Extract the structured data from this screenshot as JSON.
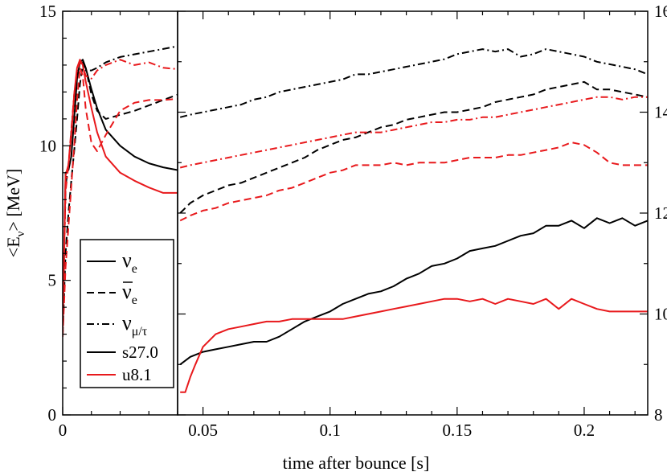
{
  "chart_data": {
    "type": "line",
    "xlabel": "time after bounce [s]",
    "ylabel_text": "<E",
    "ylabel_sub": "ν",
    "ylabel_end": "> [MeV]",
    "left_panel": {
      "xlim": [
        0,
        0.04
      ],
      "ylim": [
        0,
        15
      ],
      "x_ticks": [
        0
      ],
      "x_tick_labels": [
        "0"
      ],
      "y_ticks": [
        0,
        5,
        10,
        15
      ],
      "y_tick_labels": [
        "0",
        "5",
        "10",
        "15"
      ]
    },
    "right_panel": {
      "xlim": [
        0.04,
        0.225
      ],
      "ylim": [
        8,
        16
      ],
      "x_ticks": [
        0.05,
        0.1,
        0.15,
        0.2
      ],
      "x_tick_labels": [
        "0.05",
        "0.1",
        "0.15",
        "0.2"
      ],
      "y_ticks": [
        8,
        10,
        12,
        14,
        16
      ],
      "y_tick_labels": [
        "8",
        "10",
        "12",
        "14",
        "16"
      ]
    },
    "legend": {
      "styles": [
        {
          "key": "solid",
          "symbol": "ν",
          "sub": "e"
        },
        {
          "key": "dashed",
          "symbol": "ν",
          "sub": "e",
          "bar": true
        },
        {
          "key": "dashdot",
          "symbol": "ν",
          "sub": "μ/τ"
        }
      ],
      "models": [
        {
          "name": "s27.0",
          "color": "#000000"
        },
        {
          "name": "u8.1",
          "color": "#e8191c"
        }
      ]
    },
    "series": [
      {
        "name": "s27.0 nu_e early",
        "model": "s27.0",
        "flavor": "nu_e",
        "panel": "left",
        "color": "#000000",
        "dash": "solid",
        "x": [
          0,
          0.001,
          0.002,
          0.003,
          0.004,
          0.005,
          0.006,
          0.007,
          0.008,
          0.01,
          0.012,
          0.015,
          0.02,
          0.025,
          0.03,
          0.035,
          0.04
        ],
        "y": [
          3.2,
          9.0,
          9.1,
          9.6,
          11.0,
          12.5,
          13.1,
          13.2,
          12.9,
          12.1,
          11.4,
          10.6,
          10.0,
          9.6,
          9.35,
          9.2,
          9.1
        ]
      },
      {
        "name": "s27.0 anti-nu_e early",
        "model": "s27.0",
        "flavor": "anti_nu_e",
        "panel": "left",
        "color": "#000000",
        "dash": "dashed",
        "x": [
          0,
          0.001,
          0.002,
          0.003,
          0.004,
          0.005,
          0.006,
          0.007,
          0.008,
          0.01,
          0.012,
          0.015,
          0.02,
          0.025,
          0.03,
          0.035,
          0.04
        ],
        "y": [
          3.0,
          6.0,
          7.5,
          8.7,
          9.8,
          11.0,
          12.3,
          13.0,
          12.9,
          11.9,
          11.3,
          11.0,
          11.15,
          11.3,
          11.5,
          11.7,
          11.9
        ]
      },
      {
        "name": "s27.0 nu_mu/tau early",
        "model": "s27.0",
        "flavor": "nu_x",
        "panel": "left",
        "color": "#000000",
        "dash": "dashdot",
        "x": [
          0,
          0.001,
          0.002,
          0.003,
          0.004,
          0.005,
          0.006,
          0.007,
          0.008,
          0.01,
          0.012,
          0.015,
          0.02,
          0.025,
          0.03,
          0.035,
          0.04
        ],
        "y": [
          3.5,
          8.5,
          9.3,
          10.5,
          11.8,
          12.7,
          13.1,
          13.1,
          12.8,
          12.8,
          12.9,
          13.1,
          13.3,
          13.4,
          13.5,
          13.6,
          13.7
        ]
      },
      {
        "name": "u8.1 nu_e early",
        "model": "u8.1",
        "flavor": "nu_e",
        "panel": "left",
        "color": "#e8191c",
        "dash": "solid",
        "x": [
          0,
          0.001,
          0.002,
          0.003,
          0.004,
          0.005,
          0.006,
          0.007,
          0.008,
          0.01,
          0.012,
          0.015,
          0.02,
          0.025,
          0.03,
          0.035,
          0.04
        ],
        "y": [
          3.1,
          8.9,
          9.3,
          10.4,
          11.9,
          12.9,
          13.2,
          13.0,
          12.4,
          11.4,
          10.5,
          9.6,
          9.0,
          8.7,
          8.45,
          8.25,
          8.25
        ]
      },
      {
        "name": "u8.1 anti-nu_e early",
        "model": "u8.1",
        "flavor": "anti_nu_e",
        "panel": "left",
        "color": "#e8191c",
        "dash": "dashed",
        "x": [
          0,
          0.001,
          0.002,
          0.003,
          0.004,
          0.005,
          0.006,
          0.007,
          0.008,
          0.01,
          0.012,
          0.015,
          0.02,
          0.025,
          0.03,
          0.035,
          0.04
        ],
        "y": [
          2.9,
          5.5,
          7.0,
          8.5,
          10.0,
          11.7,
          12.9,
          12.6,
          11.4,
          10.1,
          9.8,
          10.4,
          11.3,
          11.6,
          11.7,
          11.7,
          11.75
        ]
      },
      {
        "name": "u8.1 nu_mu/tau early",
        "model": "u8.1",
        "flavor": "nu_x",
        "panel": "left",
        "color": "#e8191c",
        "dash": "dashdot",
        "x": [
          0,
          0.001,
          0.002,
          0.003,
          0.004,
          0.005,
          0.006,
          0.007,
          0.008,
          0.01,
          0.012,
          0.015,
          0.02,
          0.025,
          0.03,
          0.035,
          0.04
        ],
        "y": [
          3.3,
          8.3,
          9.3,
          10.6,
          11.9,
          12.8,
          13.1,
          13.0,
          12.6,
          12.5,
          12.8,
          13.0,
          13.2,
          13.0,
          13.1,
          12.9,
          12.85
        ]
      },
      {
        "name": "s27.0 nu_e",
        "model": "s27.0",
        "flavor": "nu_e",
        "panel": "right",
        "color": "#000000",
        "dash": "solid",
        "x": [
          0.041,
          0.045,
          0.05,
          0.055,
          0.06,
          0.065,
          0.07,
          0.075,
          0.08,
          0.085,
          0.09,
          0.095,
          0.1,
          0.105,
          0.11,
          0.115,
          0.12,
          0.125,
          0.13,
          0.135,
          0.14,
          0.145,
          0.15,
          0.155,
          0.16,
          0.165,
          0.17,
          0.175,
          0.18,
          0.185,
          0.19,
          0.195,
          0.2,
          0.205,
          0.21,
          0.215,
          0.22,
          0.225
        ],
        "y": [
          9.0,
          9.15,
          9.25,
          9.3,
          9.35,
          9.4,
          9.45,
          9.45,
          9.55,
          9.7,
          9.85,
          9.95,
          10.05,
          10.2,
          10.3,
          10.4,
          10.45,
          10.55,
          10.7,
          10.8,
          10.95,
          11.0,
          11.1,
          11.25,
          11.3,
          11.35,
          11.45,
          11.55,
          11.6,
          11.75,
          11.75,
          11.85,
          11.7,
          11.9,
          11.8,
          11.9,
          11.75,
          11.85
        ]
      },
      {
        "name": "s27.0 anti-nu_e",
        "model": "s27.0",
        "flavor": "anti_nu_e",
        "panel": "right",
        "color": "#000000",
        "dash": "dashed",
        "x": [
          0.041,
          0.045,
          0.05,
          0.055,
          0.06,
          0.065,
          0.07,
          0.075,
          0.08,
          0.085,
          0.09,
          0.095,
          0.1,
          0.105,
          0.11,
          0.115,
          0.12,
          0.125,
          0.13,
          0.135,
          0.14,
          0.145,
          0.15,
          0.155,
          0.16,
          0.165,
          0.17,
          0.175,
          0.18,
          0.185,
          0.19,
          0.195,
          0.2,
          0.205,
          0.21,
          0.215,
          0.22,
          0.225
        ],
        "y": [
          12.0,
          12.2,
          12.35,
          12.45,
          12.55,
          12.6,
          12.7,
          12.8,
          12.9,
          13.0,
          13.1,
          13.25,
          13.35,
          13.45,
          13.5,
          13.6,
          13.7,
          13.75,
          13.85,
          13.9,
          13.95,
          14.0,
          14.0,
          14.05,
          14.1,
          14.2,
          14.25,
          14.3,
          14.35,
          14.45,
          14.5,
          14.55,
          14.6,
          14.45,
          14.45,
          14.4,
          14.35,
          14.3
        ]
      },
      {
        "name": "s27.0 nu_mu/tau",
        "model": "s27.0",
        "flavor": "nu_x",
        "panel": "right",
        "color": "#000000",
        "dash": "dashdot",
        "x": [
          0.041,
          0.045,
          0.05,
          0.055,
          0.06,
          0.065,
          0.07,
          0.075,
          0.08,
          0.085,
          0.09,
          0.095,
          0.1,
          0.105,
          0.11,
          0.115,
          0.12,
          0.125,
          0.13,
          0.135,
          0.14,
          0.145,
          0.15,
          0.155,
          0.16,
          0.165,
          0.17,
          0.175,
          0.18,
          0.185,
          0.19,
          0.195,
          0.2,
          0.205,
          0.21,
          0.215,
          0.22,
          0.225
        ],
        "y": [
          13.9,
          13.95,
          14.0,
          14.05,
          14.1,
          14.15,
          14.25,
          14.3,
          14.4,
          14.45,
          14.5,
          14.55,
          14.6,
          14.65,
          14.75,
          14.75,
          14.8,
          14.85,
          14.9,
          14.95,
          15.0,
          15.05,
          15.15,
          15.2,
          15.25,
          15.2,
          15.25,
          15.1,
          15.15,
          15.25,
          15.2,
          15.15,
          15.1,
          15.0,
          14.95,
          14.9,
          14.85,
          14.75
        ]
      },
      {
        "name": "u8.1 nu_e",
        "model": "u8.1",
        "flavor": "nu_e",
        "panel": "right",
        "color": "#e8191c",
        "dash": "solid",
        "x": [
          0.041,
          0.043,
          0.045,
          0.047,
          0.05,
          0.055,
          0.06,
          0.065,
          0.07,
          0.075,
          0.08,
          0.085,
          0.09,
          0.095,
          0.1,
          0.105,
          0.11,
          0.115,
          0.12,
          0.125,
          0.13,
          0.135,
          0.14,
          0.145,
          0.15,
          0.155,
          0.16,
          0.165,
          0.17,
          0.175,
          0.18,
          0.185,
          0.19,
          0.195,
          0.2,
          0.205,
          0.21,
          0.215,
          0.22,
          0.225
        ],
        "y": [
          8.45,
          8.45,
          8.75,
          9.0,
          9.35,
          9.6,
          9.7,
          9.75,
          9.8,
          9.85,
          9.85,
          9.9,
          9.9,
          9.9,
          9.9,
          9.9,
          9.95,
          10.0,
          10.05,
          10.1,
          10.15,
          10.2,
          10.25,
          10.3,
          10.3,
          10.25,
          10.3,
          10.2,
          10.3,
          10.25,
          10.2,
          10.3,
          10.1,
          10.3,
          10.2,
          10.1,
          10.05,
          10.05,
          10.05,
          10.05
        ]
      },
      {
        "name": "u8.1 anti-nu_e",
        "model": "u8.1",
        "flavor": "anti_nu_e",
        "panel": "right",
        "color": "#e8191c",
        "dash": "dashed",
        "x": [
          0.041,
          0.045,
          0.05,
          0.055,
          0.06,
          0.065,
          0.07,
          0.075,
          0.08,
          0.085,
          0.09,
          0.095,
          0.1,
          0.105,
          0.11,
          0.115,
          0.12,
          0.125,
          0.13,
          0.135,
          0.14,
          0.145,
          0.15,
          0.155,
          0.16,
          0.165,
          0.17,
          0.175,
          0.18,
          0.185,
          0.19,
          0.195,
          0.2,
          0.205,
          0.21,
          0.215,
          0.22,
          0.225
        ],
        "y": [
          11.85,
          11.95,
          12.05,
          12.1,
          12.2,
          12.25,
          12.3,
          12.35,
          12.45,
          12.5,
          12.6,
          12.7,
          12.8,
          12.85,
          12.95,
          12.95,
          12.95,
          13.0,
          12.95,
          13.0,
          13.0,
          13.0,
          13.05,
          13.1,
          13.1,
          13.1,
          13.15,
          13.15,
          13.2,
          13.25,
          13.3,
          13.4,
          13.35,
          13.2,
          13.0,
          12.95,
          12.95,
          12.95
        ]
      },
      {
        "name": "u8.1 nu_mu/tau",
        "model": "u8.1",
        "flavor": "nu_x",
        "panel": "right",
        "color": "#e8191c",
        "dash": "dashdot",
        "x": [
          0.041,
          0.045,
          0.05,
          0.055,
          0.06,
          0.065,
          0.07,
          0.075,
          0.08,
          0.085,
          0.09,
          0.095,
          0.1,
          0.105,
          0.11,
          0.115,
          0.12,
          0.125,
          0.13,
          0.135,
          0.14,
          0.145,
          0.15,
          0.155,
          0.16,
          0.165,
          0.17,
          0.175,
          0.18,
          0.185,
          0.19,
          0.195,
          0.2,
          0.205,
          0.21,
          0.215,
          0.22,
          0.225
        ],
        "y": [
          12.9,
          12.95,
          13.0,
          13.05,
          13.1,
          13.15,
          13.2,
          13.25,
          13.3,
          13.35,
          13.4,
          13.45,
          13.5,
          13.55,
          13.6,
          13.6,
          13.6,
          13.65,
          13.7,
          13.75,
          13.8,
          13.8,
          13.85,
          13.85,
          13.9,
          13.9,
          13.95,
          14.0,
          14.05,
          14.1,
          14.15,
          14.2,
          14.25,
          14.3,
          14.3,
          14.25,
          14.3,
          14.3
        ]
      }
    ]
  }
}
